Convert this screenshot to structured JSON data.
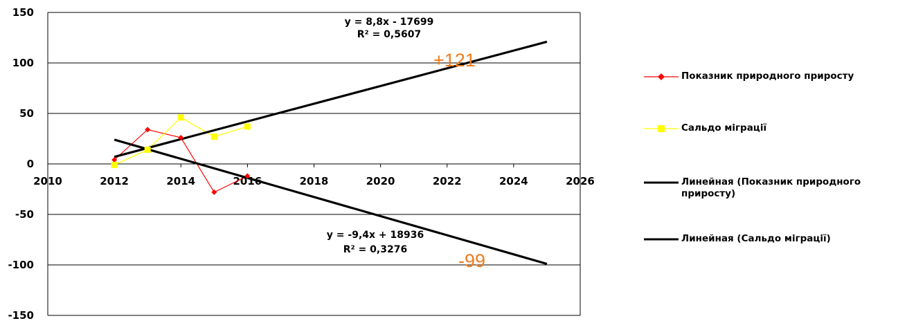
{
  "chart_data": {
    "type": "line",
    "xlim": [
      2010,
      2026
    ],
    "ylim": [
      -150,
      150
    ],
    "x_ticks": [
      2010,
      2012,
      2014,
      2016,
      2018,
      2020,
      2022,
      2024,
      2026
    ],
    "y_ticks": [
      150,
      100,
      50,
      0,
      -50,
      -100,
      -150
    ],
    "grid": "horizontal",
    "legend_position": "right",
    "series": [
      {
        "name": "Показник природного приросту",
        "color": "#ff0000",
        "marker": "diamond",
        "x": [
          2012,
          2013,
          2014,
          2015,
          2016
        ],
        "values": [
          4,
          34,
          26,
          -28,
          -12
        ]
      },
      {
        "name": "Сальдо міграції",
        "color": "#ffff00",
        "marker": "square",
        "x": [
          2012,
          2013,
          2014,
          2015,
          2016
        ],
        "values": [
          -1,
          14,
          46,
          27,
          37
        ]
      }
    ],
    "trendlines": [
      {
        "name": "Линейная (Показник природного приросту)",
        "color": "#000000",
        "x": [
          2012,
          2025
        ],
        "values": [
          24,
          -99
        ]
      },
      {
        "name": "Линейная (Сальдо міграції)",
        "color": "#000000",
        "x": [
          2012,
          2025
        ],
        "values": [
          7,
          121
        ]
      }
    ],
    "annotations": [
      {
        "text": "y = 8,8x - 17699",
        "kind": "equation"
      },
      {
        "text": "R² = 0,5607",
        "kind": "equation"
      },
      {
        "text": "y = -9,4x + 18936",
        "kind": "equation"
      },
      {
        "text": "R² = 0,3276",
        "kind": "equation"
      },
      {
        "text": "+121",
        "kind": "label",
        "color": "#f07c1c"
      },
      {
        "text": "-99",
        "kind": "label",
        "color": "#f07c1c"
      }
    ]
  },
  "legend": [
    {
      "label": "Показник природного приросту",
      "symbol": "red-line-diamond"
    },
    {
      "label": "Сальдо міграції",
      "symbol": "yellow-line-square"
    },
    {
      "label": "Линейная (Показник природного приросту)",
      "symbol": "black-line"
    },
    {
      "label": "Линейная (Сальдо міграції)",
      "symbol": "black-line"
    }
  ]
}
